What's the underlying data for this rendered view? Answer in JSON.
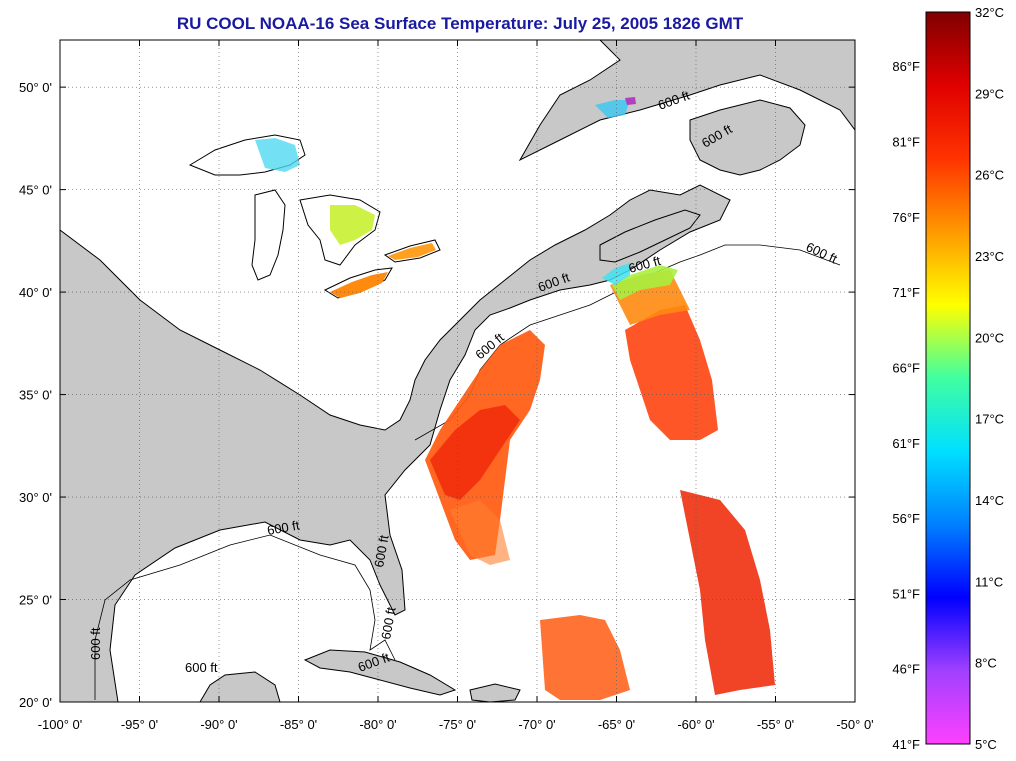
{
  "title": "RU COOL  NOAA-16  Sea Surface Temperature:  July 25, 2005 1826 GMT",
  "map": {
    "lon_range": [
      -100,
      -50
    ],
    "lat_range": [
      20,
      52.3
    ],
    "x_ticks": [
      "-100° 0'",
      "-95° 0'",
      "-90° 0'",
      "-85° 0'",
      "-80° 0'",
      "-75° 0'",
      "-70° 0'",
      "-65° 0'",
      "-60° 0'",
      "-55° 0'",
      "-50° 0'"
    ],
    "y_ticks": [
      "20° 0'",
      "25° 0'",
      "30° 0'",
      "35° 0'",
      "40° 0'",
      "45° 0'",
      "50° 0'"
    ],
    "x_tick_values": [
      -100,
      -95,
      -90,
      -85,
      -80,
      -75,
      -70,
      -65,
      -60,
      -55,
      -50
    ],
    "y_tick_values": [
      20,
      25,
      30,
      35,
      40,
      45,
      50
    ],
    "gridlines": true,
    "contour_label": "600 ft",
    "colors": {
      "land": "#c8c8c8",
      "water": "#ffffff",
      "coast": "#000000",
      "grid": "#555555"
    }
  },
  "colorbar": {
    "celsius_labels": [
      "32°C",
      "29°C",
      "26°C",
      "23°C",
      "20°C",
      "17°C",
      "14°C",
      "11°C",
      "8°C",
      "5°C"
    ],
    "celsius_values": [
      32,
      29,
      26,
      23,
      20,
      17,
      14,
      11,
      8,
      5
    ],
    "fahrenheit_labels": [
      "86°F",
      "81°F",
      "76°F",
      "71°F",
      "66°F",
      "61°F",
      "56°F",
      "51°F",
      "46°F",
      "41°F"
    ],
    "fahrenheit_values": [
      86,
      81,
      76,
      71,
      66,
      61,
      56,
      51,
      46,
      41
    ],
    "range_c": [
      5,
      32
    ],
    "gradient": [
      "#ff40ff",
      "#a040ff",
      "#0000ff",
      "#0080ff",
      "#00e0ff",
      "#40ffa0",
      "#ffff00",
      "#ff9900",
      "#ff3300",
      "#e00000",
      "#800000"
    ]
  }
}
